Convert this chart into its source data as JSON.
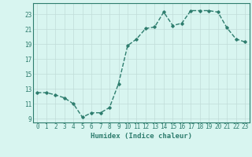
{
  "x": [
    0,
    1,
    2,
    3,
    4,
    5,
    6,
    7,
    8,
    9,
    10,
    11,
    12,
    13,
    14,
    15,
    16,
    17,
    18,
    19,
    20,
    21,
    22,
    23
  ],
  "y": [
    12.5,
    12.5,
    12.2,
    11.8,
    11.0,
    9.2,
    9.8,
    9.8,
    10.5,
    13.7,
    18.8,
    19.7,
    21.1,
    21.3,
    23.3,
    21.5,
    21.8,
    23.5,
    23.5,
    23.5,
    23.3,
    21.2,
    19.7,
    19.3
  ],
  "line_color": "#2e7d6e",
  "marker": "D",
  "marker_size": 1.8,
  "line_width": 1.0,
  "bg_color": "#d8f5f0",
  "grid_color": "#c0dcd8",
  "axis_color": "#2e7d6e",
  "xlabel": "Humidex (Indice chaleur)",
  "xlim": [
    -0.5,
    23.5
  ],
  "ylim": [
    8.5,
    24.5
  ],
  "yticks": [
    9,
    11,
    13,
    15,
    17,
    19,
    21,
    23
  ],
  "xticks": [
    0,
    1,
    2,
    3,
    4,
    5,
    6,
    7,
    8,
    9,
    10,
    11,
    12,
    13,
    14,
    15,
    16,
    17,
    18,
    19,
    20,
    21,
    22,
    23
  ],
  "label_fontsize": 6.5,
  "tick_fontsize": 5.5
}
